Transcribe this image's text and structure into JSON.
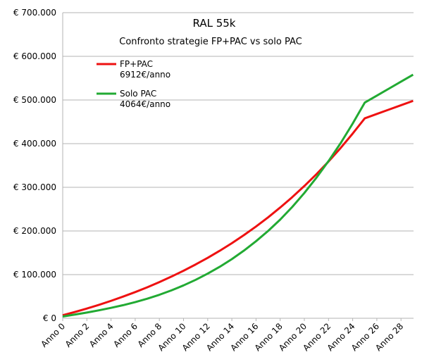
{
  "chart_data": {
    "type": "line",
    "title": "RAL 55k",
    "subtitle": "Confronto strategie FP+PAC vs solo PAC",
    "xlabel": "",
    "ylabel": "",
    "x": [
      0,
      1,
      2,
      3,
      4,
      5,
      6,
      7,
      8,
      9,
      10,
      11,
      12,
      13,
      14,
      15,
      16,
      17,
      18,
      19,
      20,
      21,
      22,
      23,
      24,
      25,
      26,
      27,
      28,
      29
    ],
    "x_tick_labels": [
      "Anno 0",
      "Anno 2",
      "Anno 4",
      "Anno 6",
      "Anno 8",
      "Anno 10",
      "Anno 12",
      "Anno 14",
      "Anno 16",
      "Anno 18",
      "Anno 20",
      "Anno 22",
      "Anno 24",
      "Anno 26",
      "Anno 28"
    ],
    "y_tick_labels": [
      "€ 0",
      "€ 100.000",
      "€ 200.000",
      "€ 300.000",
      "€ 400.000",
      "€ 500.000",
      "€ 600.000",
      "€ 700.000"
    ],
    "ylim": [
      0,
      700000
    ],
    "grid": true,
    "legend_position": "top-left",
    "series": [
      {
        "name": "FP+PAC",
        "sublabel": "6912€/anno",
        "color": "#ee1111",
        "values": [
          6912,
          14330,
          22300,
          30830,
          39930,
          49650,
          60000,
          71000,
          82900,
          95500,
          108900,
          123200,
          138400,
          154700,
          172000,
          190500,
          210200,
          231200,
          253700,
          277500,
          303000,
          330000,
          359000,
          390000,
          423000,
          458000,
          468000,
          478000,
          488000,
          498000
        ]
      },
      {
        "name": "Solo PAC",
        "sublabel": "4064€/anno",
        "color": "#22aa33",
        "values": [
          4064,
          8430,
          13150,
          18280,
          23850,
          30000,
          37000,
          44900,
          53800,
          63900,
          75300,
          88000,
          102300,
          118000,
          135500,
          155000,
          176500,
          200000,
          226000,
          255000,
          287000,
          322000,
          360000,
          401000,
          446000,
          494000,
          510000,
          526000,
          542000,
          558000
        ]
      }
    ]
  }
}
